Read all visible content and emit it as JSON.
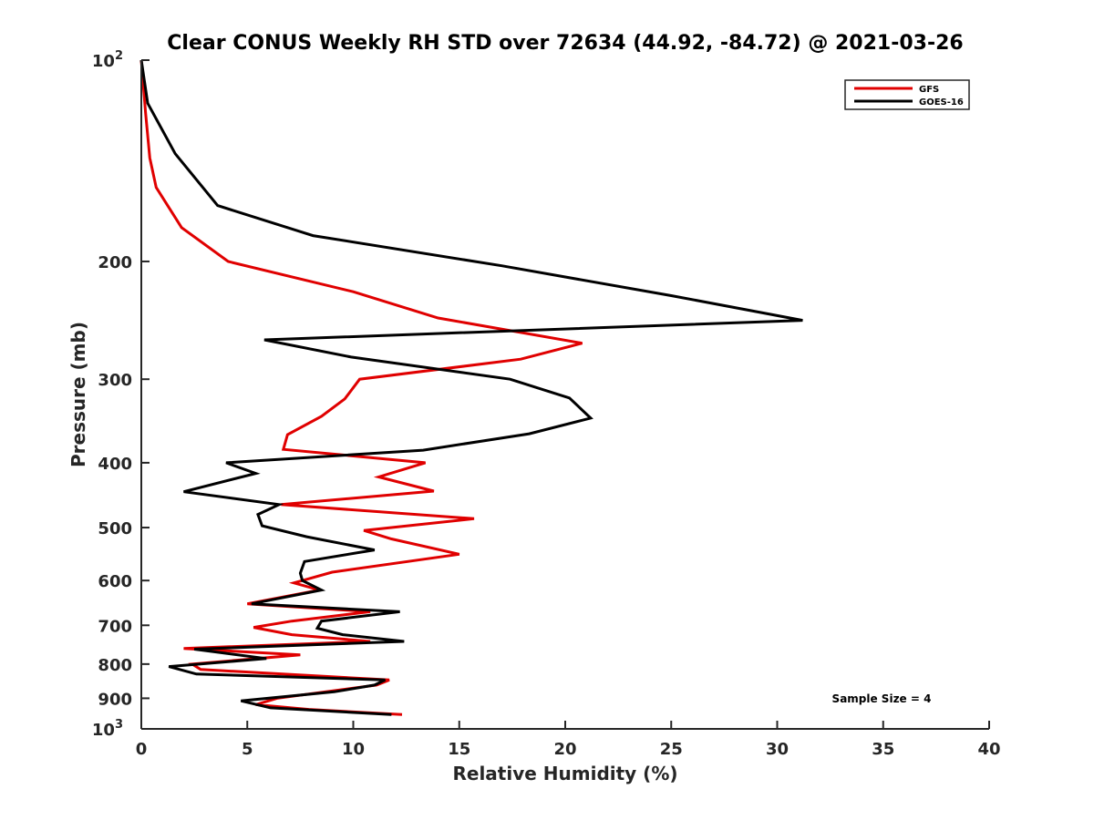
{
  "chart_data": {
    "type": "line",
    "title": "Clear CONUS Weekly RH STD over 72634 (44.92, -84.72) @ 2021-03-26",
    "xlabel": "Relative Humidity (%)",
    "ylabel": "Pressure (mb)",
    "xlim": [
      0,
      40
    ],
    "ylim": [
      100,
      1000
    ],
    "yscale": "log",
    "yreversed": true,
    "grid": false,
    "x_ticks": [
      0,
      5,
      10,
      15,
      20,
      25,
      30,
      35,
      40
    ],
    "x_tick_labels": [
      "0",
      "5",
      "10",
      "15",
      "20",
      "25",
      "30",
      "35",
      "40"
    ],
    "y_ticks": [
      100,
      200,
      300,
      400,
      500,
      600,
      700,
      800,
      900,
      1000
    ],
    "y_tick_labels": [
      {
        "base": "10",
        "sup": "2"
      },
      {
        "text": "200"
      },
      {
        "text": "300"
      },
      {
        "text": "400"
      },
      {
        "text": "500"
      },
      {
        "text": "600"
      },
      {
        "text": "700"
      },
      {
        "text": "800"
      },
      {
        "text": "900"
      },
      {
        "base": "10",
        "sup": "3"
      }
    ],
    "legend": {
      "position": "top-right",
      "entries": [
        "GFS",
        "GOES-16"
      ]
    },
    "annotation": "Sample Size = 4",
    "series": [
      {
        "name": "GFS",
        "color": "#e00000",
        "points": [
          [
            0.0,
            100
          ],
          [
            0.2,
            120
          ],
          [
            0.4,
            140
          ],
          [
            0.7,
            155
          ],
          [
            1.9,
            178
          ],
          [
            4.1,
            200
          ],
          [
            10.0,
            222
          ],
          [
            14.0,
            243
          ],
          [
            20.8,
            265
          ],
          [
            17.9,
            280
          ],
          [
            10.3,
            300
          ],
          [
            9.6,
            321
          ],
          [
            8.5,
            341
          ],
          [
            6.9,
            363
          ],
          [
            6.7,
            382
          ],
          [
            13.4,
            400
          ],
          [
            11.2,
            420
          ],
          [
            13.8,
            441
          ],
          [
            6.6,
            462
          ],
          [
            15.7,
            485
          ],
          [
            10.5,
            505
          ],
          [
            11.8,
            520
          ],
          [
            15.0,
            548
          ],
          [
            9.0,
            583
          ],
          [
            7.2,
            605
          ],
          [
            8.4,
            620
          ],
          [
            5.0,
            650
          ],
          [
            10.8,
            668
          ],
          [
            7.1,
            690
          ],
          [
            5.3,
            705
          ],
          [
            7.1,
            723
          ],
          [
            10.8,
            740
          ],
          [
            2.0,
            758
          ],
          [
            7.5,
            775
          ],
          [
            2.4,
            800
          ],
          [
            2.8,
            815
          ],
          [
            11.7,
            845
          ],
          [
            11.1,
            860
          ],
          [
            6.4,
            900
          ],
          [
            5.4,
            920
          ],
          [
            7.9,
            935
          ],
          [
            12.3,
            952
          ]
        ]
      },
      {
        "name": "GOES-16",
        "color": "#000000",
        "points": [
          [
            0.0,
            100
          ],
          [
            0.3,
            116
          ],
          [
            1.6,
            138
          ],
          [
            3.6,
            165
          ],
          [
            8.1,
            183
          ],
          [
            17.0,
            203
          ],
          [
            25.0,
            225
          ],
          [
            31.2,
            245
          ],
          [
            5.8,
            262
          ],
          [
            9.9,
            278
          ],
          [
            17.4,
            300
          ],
          [
            20.2,
            320
          ],
          [
            21.2,
            343
          ],
          [
            18.3,
            362
          ],
          [
            13.3,
            383
          ],
          [
            4.0,
            400
          ],
          [
            5.4,
            415
          ],
          [
            2.0,
            442
          ],
          [
            6.5,
            462
          ],
          [
            5.5,
            478
          ],
          [
            5.7,
            497
          ],
          [
            7.8,
            516
          ],
          [
            11.0,
            540
          ],
          [
            7.7,
            562
          ],
          [
            7.5,
            585
          ],
          [
            7.6,
            600
          ],
          [
            8.5,
            620
          ],
          [
            5.2,
            650
          ],
          [
            12.2,
            668
          ],
          [
            8.5,
            690
          ],
          [
            8.3,
            707
          ],
          [
            9.5,
            723
          ],
          [
            12.4,
            740
          ],
          [
            2.5,
            760
          ],
          [
            5.9,
            785
          ],
          [
            1.3,
            807
          ],
          [
            2.6,
            828
          ],
          [
            11.5,
            845
          ],
          [
            11.0,
            860
          ],
          [
            9.1,
            880
          ],
          [
            4.7,
            908
          ],
          [
            6.1,
            930
          ],
          [
            11.8,
            952
          ]
        ]
      }
    ]
  }
}
